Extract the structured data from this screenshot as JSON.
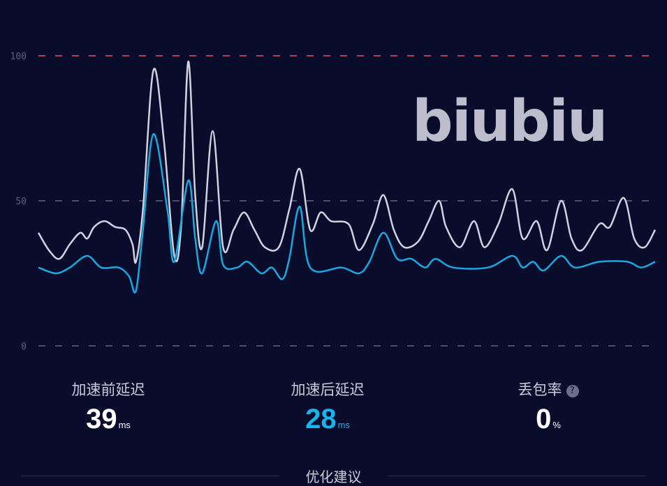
{
  "chart_data": {
    "type": "line",
    "title": "",
    "xlabel": "",
    "ylabel": "",
    "ylim": [
      0,
      100
    ],
    "yticks": [
      "0",
      "50",
      "100"
    ],
    "grid": "dashed horizontal at 0, 50, 100 (100 highlighted red)",
    "colors": {
      "before": "#d0d2e0",
      "after": "#1aa8e0",
      "limit": "#b8434f",
      "grid": "#4a4e6a"
    },
    "series": [
      {
        "key": "before",
        "x": [
          0,
          3,
          6,
          9,
          12,
          14,
          16,
          19,
          22,
          25,
          27,
          28,
          30,
          33,
          36,
          39,
          41,
          43,
          45,
          47,
          50,
          53,
          56,
          59,
          62,
          65,
          69,
          72,
          75,
          78,
          81,
          84,
          89,
          92,
          96,
          99,
          102,
          105,
          109,
          112,
          115,
          117,
          121,
          125,
          128,
          132,
          136,
          139,
          143,
          146,
          150,
          153,
          156,
          161,
          164,
          168,
          171,
          174,
          177
        ],
        "values": [
          39,
          33,
          30,
          35,
          39,
          37,
          41,
          43,
          41,
          40,
          35,
          29,
          47,
          95,
          71,
          31,
          42,
          98,
          52,
          34,
          74,
          34,
          40,
          46,
          40,
          34,
          34,
          47,
          61,
          40,
          46,
          43,
          42,
          33,
          42,
          52,
          40,
          34,
          36,
          43,
          50,
          41,
          34,
          43,
          34,
          42,
          54,
          37,
          43,
          33,
          50,
          37,
          33,
          42,
          41,
          51,
          37,
          34,
          40
        ]
      },
      {
        "key": "after",
        "x": [
          0,
          5,
          9,
          14,
          18,
          23,
          26,
          28,
          30,
          33,
          37,
          39,
          43,
          45,
          47,
          51,
          53,
          57,
          60,
          64,
          67,
          70,
          72,
          75,
          78,
          87,
          92,
          95,
          99,
          103,
          107,
          111,
          114,
          119,
          129,
          136,
          139,
          142,
          145,
          150,
          154,
          161,
          169,
          173,
          177
        ],
        "values": [
          27,
          25,
          27,
          31,
          27,
          27,
          24,
          19,
          40,
          73,
          47,
          29,
          57,
          37,
          25,
          43,
          28,
          27,
          29,
          25,
          27,
          23,
          30,
          48,
          27,
          27,
          25,
          29,
          39,
          30,
          30,
          27,
          30,
          27,
          27,
          31,
          27,
          29,
          26,
          31,
          27,
          29,
          29,
          27,
          29
        ]
      }
    ]
  },
  "stats": {
    "before": {
      "label": "加速前延迟",
      "value": "39",
      "unit": "ms"
    },
    "after": {
      "label": "加速后延迟",
      "value": "28",
      "unit": "ms"
    },
    "loss": {
      "label": "丢包率",
      "value": "0",
      "unit": "%",
      "help_icon": "question-circle-icon",
      "help": "?"
    }
  },
  "watermark": "biubiu",
  "footer": {
    "label": "优化建议"
  }
}
